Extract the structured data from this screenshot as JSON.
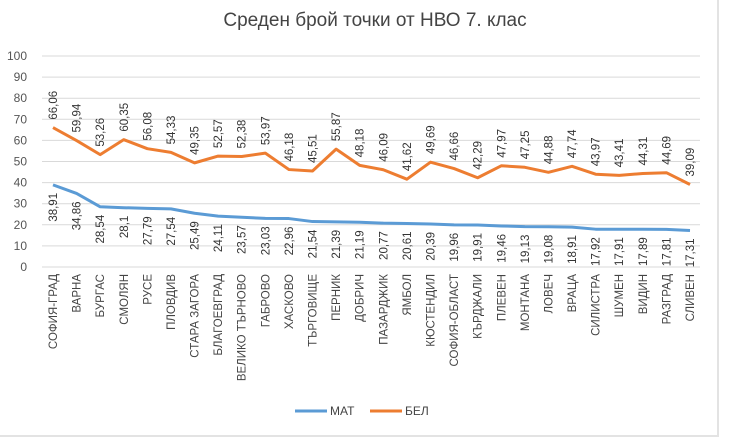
{
  "chart_data": {
    "type": "line",
    "title": "Среден брой точки от НВО 7. клас",
    "categories": [
      "СОФИЯ-ГРАД",
      "ВАРНА",
      "БУРГАС",
      "СМОЛЯН",
      "РУСЕ",
      "ПЛОВДИВ",
      "СТАРА ЗАГОРА",
      "БЛАГОЕВГРАД",
      "ВЕЛИКО ТЪРНОВО",
      "ГАБРОВО",
      "ХАСКОВО",
      "ТЪРГОВИЩЕ",
      "ПЕРНИК",
      "ДОБРИЧ",
      "ПАЗАРДЖИК",
      "ЯМБОЛ",
      "КЮСТЕНДИЛ",
      "СОФИЯ-ОБЛАСТ",
      "КЪРДЖАЛИ",
      "ПЛЕВЕН",
      "МОНТАНА",
      "ЛОВЕЧ",
      "ВРАЦА",
      "СИЛИСТРА",
      "ШУМЕН",
      "ВИДИН",
      "РАЗГРАД",
      "СЛИВЕН"
    ],
    "series": [
      {
        "name": "МАТ",
        "color": "#5b9bd5",
        "values": [
          38.91,
          34.86,
          28.54,
          28.1,
          27.79,
          27.54,
          25.49,
          24.11,
          23.57,
          23.03,
          22.96,
          21.54,
          21.39,
          21.19,
          20.77,
          20.61,
          20.39,
          19.96,
          19.91,
          19.46,
          19.13,
          19.08,
          18.91,
          17.92,
          17.91,
          17.89,
          17.81,
          17.31
        ],
        "labels": [
          "38,91",
          "34,86",
          "28,54",
          "28,1",
          "27,79",
          "27,54",
          "25,49",
          "24,11",
          "23,57",
          "23,03",
          "22,96",
          "21,54",
          "21,39",
          "21,19",
          "20,77",
          "20,61",
          "20,39",
          "19,96",
          "19,91",
          "19,46",
          "19,13",
          "19,08",
          "18,91",
          "17,92",
          "17,91",
          "17,89",
          "17,81",
          "17,31"
        ]
      },
      {
        "name": "БЕЛ",
        "color": "#ed7d31",
        "values": [
          66.06,
          59.94,
          53.26,
          60.35,
          56.08,
          54.33,
          49.35,
          52.57,
          52.38,
          53.97,
          46.18,
          45.51,
          55.87,
          48.18,
          46.09,
          41.62,
          49.69,
          46.66,
          42.29,
          47.97,
          47.25,
          44.88,
          47.74,
          43.97,
          43.41,
          44.31,
          44.69,
          39.09
        ],
        "labels": [
          "66,06",
          "59,94",
          "53,26",
          "60,35",
          "56,08",
          "54,33",
          "49,35",
          "52,57",
          "52,38",
          "53,97",
          "46,18",
          "45,51",
          "55,87",
          "48,18",
          "46,09",
          "41,62",
          "49,69",
          "46,66",
          "42,29",
          "47,97",
          "47,25",
          "44,88",
          "47,74",
          "43,97",
          "43,41",
          "44,31",
          "44,69",
          "39,09"
        ]
      }
    ],
    "y_ticks": [
      "0",
      "10",
      "20",
      "30",
      "40",
      "50",
      "60",
      "70",
      "80",
      "90",
      "100"
    ],
    "ylim": [
      0,
      100
    ],
    "grid": true,
    "legend": "bottom"
  }
}
